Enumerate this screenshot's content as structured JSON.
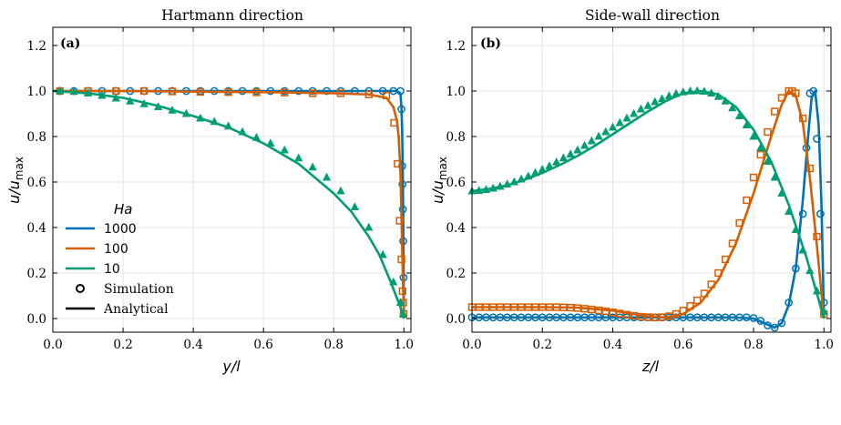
{
  "legend": {
    "title": "Ha",
    "entries": [
      "1000",
      "100",
      "10"
    ],
    "simulation_label": "Simulation",
    "analytical_label": "Analytical"
  },
  "colors": {
    "1000": "#0072B2",
    "100": "#D55E00",
    "10": "#009E73",
    "grid": "#e4e4e4",
    "axis": "#000000"
  },
  "chart_data": [
    {
      "type": "line",
      "panel_label": "(a)",
      "title": "Hartmann direction",
      "xlabel": "y/l",
      "ylabel": "u/u_max",
      "xlim": [
        0,
        1.02
      ],
      "ylim": [
        -0.06,
        1.28
      ],
      "xticks": [
        "0.0",
        "0.2",
        "0.4",
        "0.6",
        "0.8",
        "1.0"
      ],
      "yticks": [
        "0.0",
        "0.2",
        "0.4",
        "0.6",
        "0.8",
        "1.0",
        "1.2"
      ],
      "grid": true,
      "legend_position": "lower-left",
      "series": [
        {
          "name": "1000",
          "marker": "circle",
          "analytical": {
            "x": [
              0,
              0.2,
              0.4,
              0.6,
              0.8,
              0.9,
              0.95,
              0.98,
              0.99,
              0.993,
              0.995,
              0.997,
              0.998,
              0.999,
              1.0
            ],
            "y": [
              1.0,
              1.0,
              1.0,
              1.0,
              1.0,
              1.0,
              1.0,
              1.0,
              0.99,
              0.93,
              0.82,
              0.6,
              0.45,
              0.25,
              0.0
            ]
          },
          "simulation": {
            "x": [
              0.02,
              0.06,
              0.1,
              0.14,
              0.18,
              0.22,
              0.26,
              0.3,
              0.34,
              0.38,
              0.42,
              0.46,
              0.5,
              0.54,
              0.58,
              0.62,
              0.66,
              0.7,
              0.74,
              0.78,
              0.82,
              0.86,
              0.9,
              0.94,
              0.97,
              0.99,
              0.993,
              0.995,
              0.996,
              0.997,
              0.998,
              0.999
            ],
            "y": [
              1.0,
              1.0,
              1.0,
              1.0,
              1.0,
              1.0,
              1.0,
              1.0,
              1.0,
              1.0,
              1.0,
              1.0,
              1.0,
              1.0,
              1.0,
              1.0,
              1.0,
              1.0,
              1.0,
              1.0,
              1.0,
              1.0,
              1.0,
              1.0,
              1.0,
              1.0,
              0.92,
              0.67,
              0.59,
              0.48,
              0.34,
              0.18
            ]
          }
        },
        {
          "name": "100",
          "marker": "square",
          "analytical": {
            "x": [
              0,
              0.2,
              0.4,
              0.6,
              0.8,
              0.9,
              0.95,
              0.97,
              0.98,
              0.985,
              0.99,
              0.993,
              0.996,
              0.998,
              1.0
            ],
            "y": [
              1.0,
              1.0,
              0.997,
              0.995,
              0.99,
              0.985,
              0.97,
              0.93,
              0.87,
              0.8,
              0.65,
              0.45,
              0.25,
              0.12,
              0.0
            ]
          },
          "simulation": {
            "x": [
              0.02,
              0.1,
              0.18,
              0.26,
              0.34,
              0.42,
              0.5,
              0.58,
              0.66,
              0.74,
              0.82,
              0.9,
              0.95,
              0.972,
              0.982,
              0.988,
              0.993,
              0.996,
              0.998,
              0.999
            ],
            "y": [
              1.0,
              1.0,
              1.0,
              1.0,
              0.998,
              0.996,
              0.995,
              0.994,
              0.993,
              0.99,
              0.99,
              0.985,
              0.98,
              0.86,
              0.68,
              0.43,
              0.26,
              0.12,
              0.07,
              0.02
            ]
          }
        },
        {
          "name": "10",
          "marker": "triangle",
          "analytical": {
            "x": [
              0,
              0.1,
              0.2,
              0.3,
              0.4,
              0.5,
              0.6,
              0.7,
              0.8,
              0.85,
              0.9,
              0.93,
              0.96,
              0.98,
              0.99,
              1.0
            ],
            "y": [
              1.0,
              0.99,
              0.97,
              0.935,
              0.89,
              0.84,
              0.77,
              0.68,
              0.55,
              0.47,
              0.36,
              0.28,
              0.17,
              0.09,
              0.05,
              0.0
            ]
          },
          "simulation": {
            "x": [
              0.02,
              0.06,
              0.1,
              0.14,
              0.18,
              0.22,
              0.26,
              0.3,
              0.34,
              0.38,
              0.42,
              0.46,
              0.5,
              0.54,
              0.58,
              0.62,
              0.66,
              0.7,
              0.74,
              0.78,
              0.82,
              0.86,
              0.9,
              0.94,
              0.97,
              0.99,
              0.998
            ],
            "y": [
              1.0,
              0.997,
              0.99,
              0.98,
              0.968,
              0.955,
              0.943,
              0.93,
              0.915,
              0.9,
              0.88,
              0.865,
              0.845,
              0.82,
              0.795,
              0.77,
              0.74,
              0.705,
              0.665,
              0.62,
              0.56,
              0.49,
              0.4,
              0.28,
              0.16,
              0.07,
              0.02
            ]
          }
        }
      ]
    },
    {
      "type": "line",
      "panel_label": "(b)",
      "title": "Side-wall direction",
      "xlabel": "z/l",
      "ylabel": "u/u_max",
      "xlim": [
        0,
        1.02
      ],
      "ylim": [
        -0.06,
        1.28
      ],
      "xticks": [
        "0.0",
        "0.2",
        "0.4",
        "0.6",
        "0.8",
        "1.0"
      ],
      "yticks": [
        "0.0",
        "0.2",
        "0.4",
        "0.6",
        "0.8",
        "1.0",
        "1.2"
      ],
      "grid": true,
      "series": [
        {
          "name": "1000",
          "marker": "circle",
          "analytical": {
            "x": [
              0,
              0.2,
              0.4,
              0.6,
              0.75,
              0.8,
              0.83,
              0.86,
              0.88,
              0.9,
              0.92,
              0.94,
              0.955,
              0.965,
              0.975,
              0.985,
              0.993,
              1.0
            ],
            "y": [
              0.005,
              0.005,
              0.005,
              0.005,
              0.005,
              0.0,
              -0.02,
              -0.04,
              -0.02,
              0.06,
              0.22,
              0.52,
              0.8,
              0.97,
              1.0,
              0.85,
              0.5,
              0.0
            ]
          },
          "simulation": {
            "x": [
              0.0,
              0.02,
              0.04,
              0.06,
              0.08,
              0.1,
              0.12,
              0.14,
              0.16,
              0.18,
              0.2,
              0.22,
              0.24,
              0.26,
              0.28,
              0.3,
              0.32,
              0.34,
              0.36,
              0.38,
              0.4,
              0.42,
              0.44,
              0.46,
              0.48,
              0.5,
              0.52,
              0.54,
              0.56,
              0.58,
              0.6,
              0.62,
              0.64,
              0.66,
              0.68,
              0.7,
              0.72,
              0.74,
              0.76,
              0.78,
              0.8,
              0.82,
              0.84,
              0.86,
              0.88,
              0.9,
              0.92,
              0.94,
              0.95,
              0.96,
              0.97,
              0.98,
              0.99,
              1.0
            ],
            "y": [
              0.005,
              0.005,
              0.005,
              0.005,
              0.005,
              0.005,
              0.005,
              0.005,
              0.005,
              0.005,
              0.005,
              0.005,
              0.005,
              0.005,
              0.005,
              0.005,
              0.005,
              0.005,
              0.005,
              0.005,
              0.005,
              0.005,
              0.005,
              0.005,
              0.005,
              0.005,
              0.005,
              0.005,
              0.005,
              0.005,
              0.005,
              0.005,
              0.005,
              0.005,
              0.005,
              0.005,
              0.005,
              0.005,
              0.005,
              0.005,
              0.002,
              -0.01,
              -0.03,
              -0.04,
              -0.02,
              0.07,
              0.22,
              0.46,
              0.75,
              0.99,
              1.0,
              0.79,
              0.46,
              0.07
            ]
          }
        },
        {
          "name": "100",
          "marker": "square",
          "analytical": {
            "x": [
              0,
              0.1,
              0.2,
              0.3,
              0.4,
              0.5,
              0.55,
              0.6,
              0.65,
              0.7,
              0.75,
              0.8,
              0.85,
              0.88,
              0.9,
              0.92,
              0.94,
              0.96,
              0.98,
              1.0
            ],
            "y": [
              0.05,
              0.05,
              0.05,
              0.048,
              0.035,
              0.01,
              0.005,
              0.02,
              0.07,
              0.17,
              0.33,
              0.55,
              0.8,
              0.94,
              1.0,
              0.98,
              0.86,
              0.62,
              0.32,
              0.0
            ]
          },
          "simulation": {
            "x": [
              0.0,
              0.02,
              0.04,
              0.06,
              0.08,
              0.1,
              0.12,
              0.14,
              0.16,
              0.18,
              0.2,
              0.22,
              0.24,
              0.26,
              0.28,
              0.3,
              0.32,
              0.34,
              0.36,
              0.38,
              0.4,
              0.42,
              0.44,
              0.46,
              0.48,
              0.5,
              0.52,
              0.54,
              0.56,
              0.58,
              0.6,
              0.62,
              0.64,
              0.66,
              0.68,
              0.7,
              0.72,
              0.74,
              0.76,
              0.78,
              0.8,
              0.82,
              0.84,
              0.86,
              0.88,
              0.9,
              0.91,
              0.92,
              0.94,
              0.96,
              0.98,
              1.0
            ],
            "y": [
              0.05,
              0.05,
              0.05,
              0.05,
              0.05,
              0.05,
              0.05,
              0.05,
              0.05,
              0.05,
              0.05,
              0.05,
              0.05,
              0.049,
              0.048,
              0.046,
              0.043,
              0.04,
              0.036,
              0.032,
              0.027,
              0.022,
              0.017,
              0.012,
              0.008,
              0.006,
              0.005,
              0.006,
              0.01,
              0.02,
              0.035,
              0.055,
              0.08,
              0.11,
              0.15,
              0.2,
              0.26,
              0.33,
              0.42,
              0.52,
              0.62,
              0.72,
              0.82,
              0.91,
              0.97,
              1.0,
              1.0,
              0.99,
              0.88,
              0.66,
              0.36,
              0.02
            ]
          }
        },
        {
          "name": "10",
          "marker": "triangle",
          "analytical": {
            "x": [
              0,
              0.05,
              0.1,
              0.15,
              0.2,
              0.25,
              0.3,
              0.35,
              0.4,
              0.45,
              0.5,
              0.55,
              0.6,
              0.65,
              0.7,
              0.75,
              0.8,
              0.85,
              0.9,
              0.95,
              0.98,
              1.0
            ],
            "y": [
              0.56,
              0.57,
              0.585,
              0.61,
              0.64,
              0.675,
              0.715,
              0.76,
              0.81,
              0.86,
              0.91,
              0.955,
              0.99,
              1.0,
              0.985,
              0.93,
              0.83,
              0.69,
              0.5,
              0.27,
              0.11,
              0.0
            ]
          },
          "simulation": {
            "x": [
              0.0,
              0.02,
              0.04,
              0.06,
              0.08,
              0.1,
              0.12,
              0.14,
              0.16,
              0.18,
              0.2,
              0.22,
              0.24,
              0.26,
              0.28,
              0.3,
              0.32,
              0.34,
              0.36,
              0.38,
              0.4,
              0.42,
              0.44,
              0.46,
              0.48,
              0.5,
              0.52,
              0.54,
              0.56,
              0.58,
              0.6,
              0.62,
              0.64,
              0.66,
              0.68,
              0.7,
              0.72,
              0.74,
              0.76,
              0.78,
              0.8,
              0.82,
              0.84,
              0.86,
              0.88,
              0.9,
              0.92,
              0.94,
              0.96,
              0.98,
              1.0
            ],
            "y": [
              0.56,
              0.562,
              0.566,
              0.572,
              0.58,
              0.59,
              0.6,
              0.612,
              0.625,
              0.64,
              0.655,
              0.67,
              0.687,
              0.705,
              0.722,
              0.74,
              0.76,
              0.78,
              0.8,
              0.82,
              0.84,
              0.86,
              0.88,
              0.9,
              0.92,
              0.935,
              0.952,
              0.965,
              0.978,
              0.988,
              0.995,
              0.999,
              1.0,
              0.998,
              0.99,
              0.975,
              0.955,
              0.925,
              0.89,
              0.85,
              0.8,
              0.75,
              0.69,
              0.62,
              0.55,
              0.47,
              0.39,
              0.3,
              0.21,
              0.12,
              0.03
            ]
          }
        }
      ]
    }
  ]
}
